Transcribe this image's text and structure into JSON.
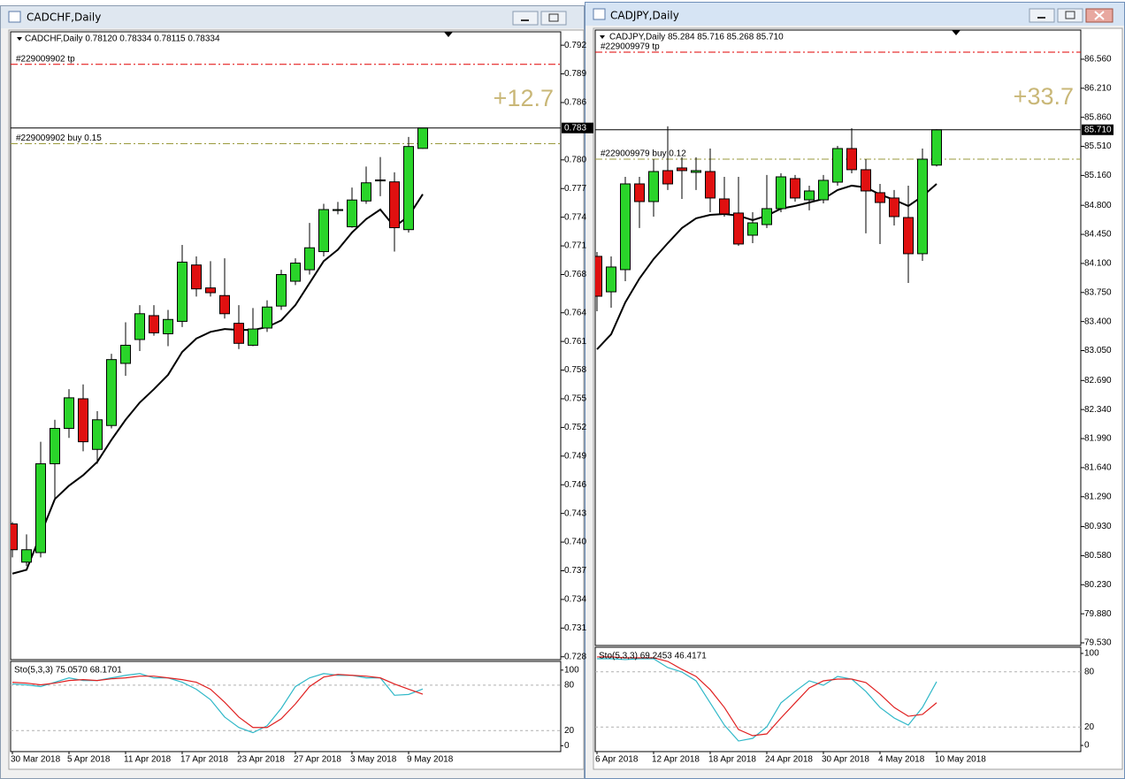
{
  "windows": [
    {
      "title": "CADCHF,Daily",
      "chart_data": {
        "type": "candlestick",
        "header": "CADCHF,Daily  0.78120 0.78334 0.78115 0.78334",
        "categories": [
          "30 Mar 2018",
          null,
          null,
          null,
          "5 Apr 2018",
          null,
          null,
          null,
          "11 Apr 2018",
          null,
          null,
          null,
          "17 Apr 2018",
          null,
          null,
          null,
          "23 Apr 2018",
          null,
          null,
          null,
          "27 Apr 2018",
          null,
          null,
          null,
          "3 May 2018",
          null,
          null,
          null,
          "9 May 2018",
          null
        ],
        "candles": [
          [
            0.7419,
            0.7421,
            0.7384,
            0.7392
          ],
          [
            0.7379,
            0.7408,
            0.7375,
            0.7392
          ],
          [
            0.7389,
            0.7505,
            0.7384,
            0.7482
          ],
          [
            0.7482,
            0.7528,
            0.7445,
            0.7519
          ],
          [
            0.7519,
            0.756,
            0.7509,
            0.7551
          ],
          [
            0.755,
            0.7565,
            0.7495,
            0.7505
          ],
          [
            0.7497,
            0.7537,
            0.7482,
            0.7528
          ],
          [
            0.7522,
            0.7597,
            0.7519,
            0.7591
          ],
          [
            0.7587,
            0.763,
            0.7574,
            0.7606
          ],
          [
            0.7612,
            0.7648,
            0.76,
            0.7639
          ],
          [
            0.7637,
            0.7648,
            0.7616,
            0.7619
          ],
          [
            0.7618,
            0.7643,
            0.7605,
            0.7633
          ],
          [
            0.7631,
            0.7711,
            0.7625,
            0.7693
          ],
          [
            0.769,
            0.7699,
            0.7657,
            0.7665
          ],
          [
            0.7666,
            0.7694,
            0.7657,
            0.7661
          ],
          [
            0.7658,
            0.7697,
            0.7634,
            0.7639
          ],
          [
            0.7629,
            0.7648,
            0.7602,
            0.7608
          ],
          [
            0.7606,
            0.7645,
            0.7605,
            0.7623
          ],
          [
            0.7624,
            0.7653,
            0.762,
            0.7646
          ],
          [
            0.7647,
            0.7685,
            0.7643,
            0.768
          ],
          [
            0.7673,
            0.7697,
            0.7669,
            0.7692
          ],
          [
            0.7685,
            0.7734,
            0.768,
            0.7708
          ],
          [
            0.7704,
            0.7754,
            0.7699,
            0.7748
          ],
          [
            0.7747,
            0.7756,
            0.7743,
            0.7748
          ],
          [
            0.773,
            0.7771,
            0.7729,
            0.7758
          ],
          [
            0.7757,
            0.7793,
            0.7754,
            0.7776
          ],
          [
            0.7778,
            0.7803,
            0.7762,
            0.7779
          ],
          [
            0.7777,
            0.7787,
            0.7704,
            0.7729
          ],
          [
            0.7727,
            0.7824,
            0.7724,
            0.7814
          ],
          [
            0.7812,
            0.78334,
            0.78115,
            0.78334
          ]
        ],
        "bull_color": "#2ad42a",
        "bear_color": "#e01010",
        "ma": {
          "color": "#000000",
          "values": [
            0.7367,
            0.7371,
            0.7408,
            0.7445,
            0.7459,
            0.747,
            0.7484,
            0.7507,
            0.7528,
            0.7546,
            0.756,
            0.7575,
            0.7599,
            0.7613,
            0.762,
            0.7623,
            0.7622,
            0.7622,
            0.7625,
            0.7632,
            0.7648,
            0.7671,
            0.7694,
            0.7706,
            0.7724,
            0.7738,
            0.7748,
            0.773,
            0.7741,
            0.7764
          ]
        },
        "ylim": [
          0.7277,
          0.7934
        ],
        "yticks": [
          0.792,
          0.789,
          0.786,
          {
            "value": 0.78,
            "label": "0.780"
          },
          0.777,
          0.774,
          0.771,
          0.768,
          0.764,
          0.761,
          0.758,
          0.755,
          0.752,
          0.749,
          0.746,
          0.743,
          {
            "value": 0.74,
            "label": "0.740"
          },
          0.737,
          0.734,
          0.731,
          0.728
        ],
        "last_price": {
          "value": 0.78334,
          "label": "0.783"
        },
        "orders": [
          {
            "label": "#229009902 tp",
            "price": 0.79,
            "color": "#e00000"
          },
          {
            "label": "#229009902 buy 0.15",
            "price": 0.7817,
            "color": "#9a9a3c"
          }
        ],
        "profit": "+12.7",
        "indicator": {
          "type": "line",
          "label": "Sto(5,3,3) 75.0570 68.1701",
          "ylim": [
            -7.8,
            111.5
          ],
          "yticks": [
            100,
            80,
            20,
            0
          ],
          "series": [
            {
              "color": "#30b8c8",
              "values": [
                81.6,
                80.5,
                78.2,
                83.9,
                89.7,
                86.2,
                86.2,
                89.7,
                93.1,
                95.4,
                89.7,
                89.7,
                83.9,
                74.7,
                60.9,
                37.9,
                24.1,
                17.2,
                26.4,
                49.4,
                78.2,
                89.7,
                95.4,
                93.1,
                93.1,
                89.7,
                89.7,
                66.7,
                67.8,
                75.057
              ]
            },
            {
              "color": "#e02020",
              "values": [
                83.9,
                82.8,
                80.5,
                82.8,
                86.2,
                87.4,
                86.2,
                88.5,
                89.7,
                92.0,
                92.0,
                89.7,
                87.4,
                83.9,
                74.7,
                57.5,
                37.9,
                24.1,
                24.1,
                35.6,
                55.2,
                78.2,
                90.8,
                94.3,
                93.1,
                92.0,
                89.7,
                81.6,
                74.7,
                68.1701
              ]
            }
          ]
        }
      }
    },
    {
      "title": "CADJPY,Daily",
      "chart_data": {
        "type": "candlestick",
        "header": "CADJPY,Daily  85.284 85.716 85.268 85.710",
        "categories": [
          "6 Apr 2018",
          null,
          null,
          null,
          "12 Apr 2018",
          null,
          null,
          null,
          "18 Apr 2018",
          null,
          null,
          null,
          "24 Apr 2018",
          null,
          null,
          null,
          "30 Apr 2018",
          null,
          null,
          null,
          "4 May 2018",
          null,
          null,
          null,
          "10 May 2018"
        ],
        "candles": [
          [
            84.185,
            84.238,
            83.524,
            83.705
          ],
          [
            83.758,
            84.185,
            83.567,
            84.057
          ],
          [
            84.025,
            85.143,
            83.886,
            85.058
          ],
          [
            85.058,
            85.143,
            84.526,
            84.845
          ],
          [
            84.845,
            85.356,
            84.664,
            85.207
          ],
          [
            85.218,
            85.751,
            84.984,
            85.058
          ],
          [
            85.25,
            85.378,
            84.877,
            85.218
          ],
          [
            85.197,
            85.378,
            84.984,
            85.218
          ],
          [
            85.207,
            85.484,
            84.717,
            84.888
          ],
          [
            84.877,
            85.143,
            84.664,
            84.696
          ],
          [
            84.707,
            85.143,
            84.312,
            84.334
          ],
          [
            84.44,
            84.717,
            84.344,
            84.589
          ],
          [
            84.568,
            85.165,
            84.526,
            84.76
          ],
          [
            84.76,
            85.186,
            84.717,
            85.143
          ],
          [
            85.122,
            85.165,
            84.845,
            84.888
          ],
          [
            84.866,
            85.037,
            84.739,
            84.973
          ],
          [
            84.866,
            85.165,
            84.824,
            85.101
          ],
          [
            85.079,
            85.516,
            85.037,
            85.484
          ],
          [
            85.484,
            85.729,
            85.186,
            85.229
          ],
          [
            85.229,
            85.356,
            84.462,
            84.973
          ],
          [
            84.952,
            85.058,
            84.334,
            84.834
          ],
          [
            84.888,
            84.984,
            84.557,
            84.664
          ],
          [
            84.653,
            85.037,
            83.865,
            84.217
          ],
          [
            84.217,
            85.484,
            84.131,
            85.356
          ],
          [
            85.284,
            85.716,
            85.268,
            85.71
          ]
        ],
        "bull_color": "#2ad42a",
        "bear_color": "#e01010",
        "ma": {
          "color": "#000000",
          "values": [
            83.066,
            83.247,
            83.631,
            83.918,
            84.153,
            84.344,
            84.526,
            84.643,
            84.685,
            84.696,
            84.675,
            84.621,
            84.675,
            84.76,
            84.792,
            84.834,
            84.877,
            84.984,
            85.037,
            85.015,
            84.93,
            84.866,
            84.792,
            84.909,
            85.058
          ]
        },
        "ylim": [
          79.498,
          86.911
        ],
        "yticks": [
          {
            "value": 86.56,
            "label": "86.560"
          },
          {
            "value": 86.21,
            "label": "86.210"
          },
          {
            "value": 85.86,
            "label": "85.860"
          },
          {
            "value": 85.51,
            "label": "85.510"
          },
          {
            "value": 85.16,
            "label": "85.160"
          },
          {
            "value": 84.8,
            "label": "84.800"
          },
          {
            "value": 84.45,
            "label": "84.450"
          },
          {
            "value": 84.1,
            "label": "84.100"
          },
          {
            "value": 83.75,
            "label": "83.750"
          },
          {
            "value": 83.4,
            "label": "83.400"
          },
          {
            "value": 83.05,
            "label": "83.050"
          },
          {
            "value": 82.69,
            "label": "82.690"
          },
          {
            "value": 82.34,
            "label": "82.340"
          },
          {
            "value": 81.99,
            "label": "81.990"
          },
          {
            "value": 81.64,
            "label": "81.640"
          },
          {
            "value": 81.29,
            "label": "81.290"
          },
          {
            "value": 80.93,
            "label": "80.930"
          },
          {
            "value": 80.58,
            "label": "80.580"
          },
          {
            "value": 80.23,
            "label": "80.230"
          },
          {
            "value": 79.88,
            "label": "79.880"
          },
          {
            "value": 79.53,
            "label": "79.530"
          }
        ],
        "last_price": {
          "value": 85.71,
          "label": "85.710"
        },
        "orders": [
          {
            "label": "#229009979 tp",
            "price": 86.645,
            "color": "#e00000"
          },
          {
            "label": "#229009979 buy 0.12",
            "price": 85.356,
            "color": "#9a9a3c"
          }
        ],
        "profit": "+33.7",
        "indicator": {
          "type": "line",
          "label": "Sto(5,3,3) 69.2453 46.4171",
          "ylim": [
            -6.7,
            106.7
          ],
          "yticks": [
            100,
            80,
            20,
            0
          ],
          "series": [
            {
              "color": "#30b8c8",
              "values": [
                94.2,
                94.2,
                93.3,
                94.2,
                94.2,
                84.6,
                79.8,
                70.2,
                46.2,
                22.1,
                4.8,
                7.7,
                20.2,
                46.2,
                58.7,
                70.2,
                65.4,
                75.0,
                72.1,
                58.7,
                41.3,
                29.8,
                22.1,
                41.3,
                69.2453
              ]
            },
            {
              "color": "#e02020",
              "values": [
                96.2,
                96.2,
                95.2,
                95.2,
                95.2,
                91.3,
                82.7,
                75.0,
                60.6,
                41.3,
                17.3,
                10.6,
                12.5,
                29.8,
                46.2,
                62.5,
                70.2,
                72.1,
                72.1,
                68.3,
                55.8,
                41.3,
                31.7,
                33.7,
                46.4171
              ]
            }
          ]
        }
      }
    }
  ]
}
